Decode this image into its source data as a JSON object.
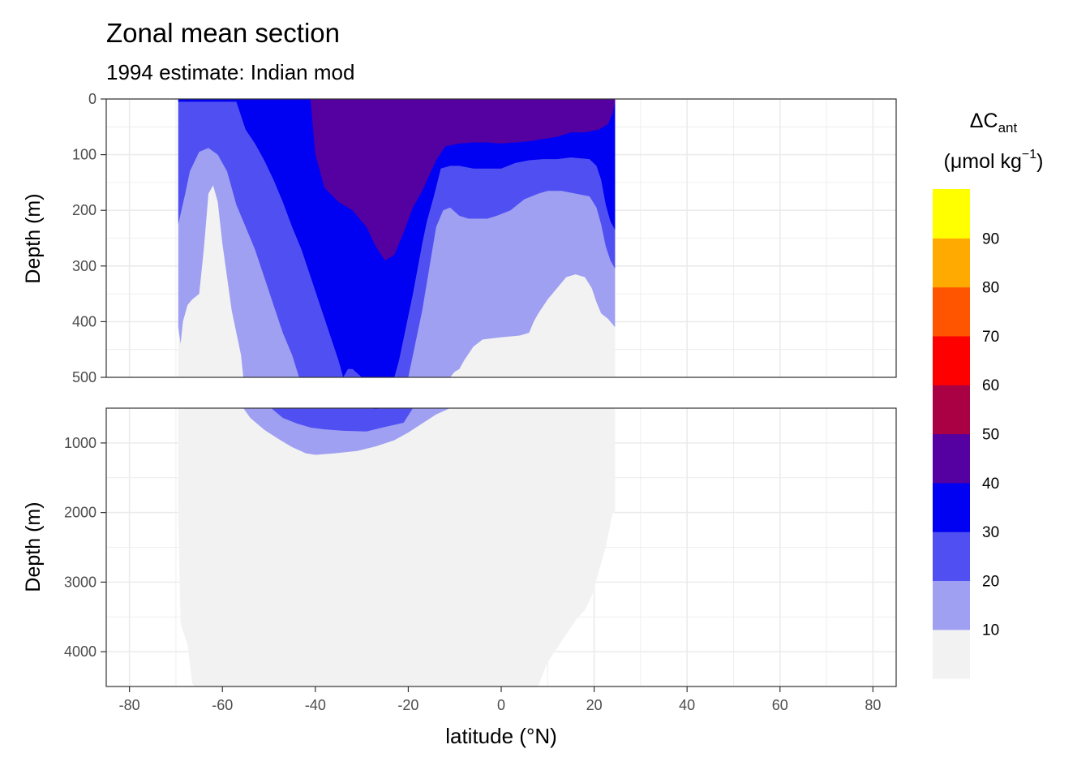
{
  "title": "Zonal mean section",
  "subtitle": "1994 estimate: Indian mod",
  "colors": {
    "bins": [
      "#F2F2F2",
      "#A0A0F2",
      "#5050F2",
      "#0000F2",
      "#5500A0",
      "#AA0044",
      "#FF0000",
      "#FF5500",
      "#FFAA00",
      "#FFFF00"
    ],
    "grid": "#EBEBEB",
    "panel_border": "#333333",
    "axis_text": "#4D4D4D"
  },
  "chart_data": {
    "type": "heatmap",
    "xlabel": "latitude (°N)",
    "ylabel": "Depth (m)",
    "xlim": [
      -85,
      85
    ],
    "x_ticks": [
      -80,
      -60,
      -40,
      -20,
      0,
      20,
      40,
      60,
      80
    ],
    "x_tick_labels": [
      "-80",
      "-60",
      "-40",
      "-20",
      "0",
      "20",
      "40",
      "60",
      "80"
    ],
    "data_extent_lat": [
      -69.5,
      24.5
    ],
    "panels": [
      {
        "name": "upper",
        "ylim": [
          500,
          0
        ],
        "y_ticks": [
          0,
          100,
          200,
          300,
          400,
          500
        ],
        "y_tick_labels": [
          "0",
          "100",
          "200",
          "300",
          "400",
          "500"
        ],
        "bottom_profile": [
          [
            -69.5,
            500
          ],
          [
            -67,
            500
          ],
          [
            -65,
            500
          ],
          [
            -60,
            500
          ],
          [
            -55,
            500
          ],
          [
            24.5,
            500
          ]
        ]
      },
      {
        "name": "lower",
        "ylim": [
          4500,
          500
        ],
        "y_ticks": [
          1000,
          2000,
          3000,
          4000
        ],
        "y_tick_labels": [
          "1000",
          "2000",
          "3000",
          "4000"
        ],
        "bottom_profile": [
          [
            -69.5,
            2050
          ],
          [
            -69,
            3600
          ],
          [
            -67.5,
            3900
          ],
          [
            -66.5,
            4450
          ],
          [
            -66,
            4500
          ],
          [
            8,
            4500
          ],
          [
            8.5,
            4400
          ],
          [
            10,
            4150
          ],
          [
            12,
            3950
          ],
          [
            14,
            3750
          ],
          [
            16,
            3550
          ],
          [
            18,
            3400
          ],
          [
            19.5,
            3200
          ],
          [
            21,
            2850
          ],
          [
            22.5,
            2500
          ],
          [
            24,
            2000
          ],
          [
            24.5,
            2000
          ]
        ]
      }
    ],
    "contours": {
      "upper": [
        {
          "level": 10,
          "boundary": [
            [
              -69.5,
              410
            ],
            [
              -69,
              440
            ],
            [
              -68.5,
              400
            ],
            [
              -67.5,
              370
            ],
            [
              -66.5,
              360
            ],
            [
              -65,
              350
            ],
            [
              -64,
              270
            ],
            [
              -63,
              170
            ],
            [
              -62,
              155
            ],
            [
              -61,
              185
            ],
            [
              -60,
              260
            ],
            [
              -59,
              320
            ],
            [
              -58,
              380
            ],
            [
              -57,
              420
            ],
            [
              -56,
              460
            ],
            [
              -55.5,
              500
            ],
            [
              -34,
              500
            ],
            [
              -33.5,
              480
            ],
            [
              -33,
              470
            ],
            [
              -32,
              480
            ],
            [
              -31,
              490
            ],
            [
              -30,
              500
            ],
            [
              -11,
              500
            ],
            [
              -10,
              490
            ],
            [
              -9,
              485
            ],
            [
              -8,
              470
            ],
            [
              -6,
              445
            ],
            [
              -4,
              432
            ],
            [
              0,
              428
            ],
            [
              4,
              425
            ],
            [
              6,
              420
            ],
            [
              7,
              400
            ],
            [
              8,
              385
            ],
            [
              10,
              360
            ],
            [
              12,
              340
            ],
            [
              14,
              320
            ],
            [
              16,
              315
            ],
            [
              18,
              320
            ],
            [
              19.5,
              340
            ],
            [
              20.5,
              365
            ],
            [
              21.5,
              385
            ],
            [
              23,
              395
            ],
            [
              24.5,
              410
            ]
          ]
        },
        {
          "level": 20,
          "boundary": [
            [
              -69.5,
              225
            ],
            [
              -68,
              170
            ],
            [
              -67,
              130
            ],
            [
              -65,
              95
            ],
            [
              -63,
              88
            ],
            [
              -61,
              100
            ],
            [
              -59,
              130
            ],
            [
              -57,
              190
            ],
            [
              -55,
              230
            ],
            [
              -53,
              270
            ],
            [
              -51,
              320
            ],
            [
              -49,
              370
            ],
            [
              -47,
              420
            ],
            [
              -45,
              460
            ],
            [
              -43.5,
              500
            ],
            [
              -20,
              500
            ],
            [
              -19,
              460
            ],
            [
              -18,
              420
            ],
            [
              -17,
              380
            ],
            [
              -16,
              330
            ],
            [
              -15,
              280
            ],
            [
              -14,
              230
            ],
            [
              -12.5,
              200
            ],
            [
              -11,
              195
            ],
            [
              -9,
              210
            ],
            [
              -7,
              215
            ],
            [
              -5,
              215
            ],
            [
              -3,
              215
            ],
            [
              -1,
              210
            ],
            [
              2,
              200
            ],
            [
              5,
              180
            ],
            [
              8,
              170
            ],
            [
              10,
              165
            ],
            [
              13,
              165
            ],
            [
              16,
              170
            ],
            [
              19,
              175
            ],
            [
              20.5,
              195
            ],
            [
              21.5,
              225
            ],
            [
              22.5,
              265
            ],
            [
              23.5,
              290
            ],
            [
              24.5,
              305
            ]
          ]
        },
        {
          "level": 30,
          "boundary": [
            [
              -69.5,
              5
            ],
            [
              -60,
              5
            ],
            [
              -57,
              5
            ],
            [
              -56,
              30
            ],
            [
              -55,
              55
            ],
            [
              -53,
              80
            ],
            [
              -51,
              110
            ],
            [
              -49,
              145
            ],
            [
              -47,
              185
            ],
            [
              -45,
              230
            ],
            [
              -43,
              270
            ],
            [
              -41,
              320
            ],
            [
              -39,
              370
            ],
            [
              -37,
              420
            ],
            [
              -35,
              470
            ],
            [
              -34,
              500
            ],
            [
              -33,
              485
            ],
            [
              -32,
              485
            ],
            [
              -30,
              500
            ],
            [
              -23,
              500
            ],
            [
              -22,
              470
            ],
            [
              -21,
              430
            ],
            [
              -20,
              390
            ],
            [
              -19,
              350
            ],
            [
              -18,
              305
            ],
            [
              -17,
              260
            ],
            [
              -16,
              220
            ],
            [
              -14.5,
              175
            ],
            [
              -13,
              125
            ],
            [
              -11,
              120
            ],
            [
              -9,
              120
            ],
            [
              -6,
              125
            ],
            [
              -3,
              125
            ],
            [
              0,
              125
            ],
            [
              3,
              115
            ],
            [
              6,
              110
            ],
            [
              9,
              108
            ],
            [
              12,
              108
            ],
            [
              15,
              105
            ],
            [
              19,
              108
            ],
            [
              20.5,
              120
            ],
            [
              21.5,
              145
            ],
            [
              22.5,
              190
            ],
            [
              23.5,
              220
            ],
            [
              24.5,
              235
            ]
          ]
        },
        {
          "level": 40,
          "boundary": [
            [
              -41,
              5
            ],
            [
              -40,
              100
            ],
            [
              -38,
              160
            ],
            [
              -35,
              185
            ],
            [
              -32,
              200
            ],
            [
              -29,
              230
            ],
            [
              -27,
              265
            ],
            [
              -25,
              290
            ],
            [
              -23,
              280
            ],
            [
              -21,
              240
            ],
            [
              -19,
              195
            ],
            [
              -17,
              165
            ],
            [
              -14,
              110
            ],
            [
              -12,
              85
            ],
            [
              -9,
              80
            ],
            [
              -6,
              78
            ],
            [
              -3,
              78
            ],
            [
              0,
              80
            ],
            [
              3,
              78
            ],
            [
              6,
              76
            ],
            [
              9,
              72
            ],
            [
              12,
              68
            ],
            [
              15,
              60
            ],
            [
              18,
              60
            ],
            [
              21,
              55
            ],
            [
              23,
              45
            ],
            [
              24,
              25
            ],
            [
              24.5,
              5
            ]
          ]
        }
      ],
      "lower": [
        {
          "level": 10,
          "boundary": [
            [
              -55.5,
              500
            ],
            [
              -54,
              640
            ],
            [
              -51,
              810
            ],
            [
              -48,
              940
            ],
            [
              -45,
              1060
            ],
            [
              -42,
              1150
            ],
            [
              -40,
              1170
            ],
            [
              -36,
              1150
            ],
            [
              -31,
              1115
            ],
            [
              -27,
              1050
            ],
            [
              -23,
              960
            ],
            [
              -20,
              850
            ],
            [
              -17,
              720
            ],
            [
              -14,
              590
            ],
            [
              -11,
              500
            ]
          ]
        },
        {
          "level": 20,
          "boundary": [
            [
              -49.5,
              500
            ],
            [
              -47,
              640
            ],
            [
              -44,
              720
            ],
            [
              -41,
              780
            ],
            [
              -38,
              805
            ],
            [
              -34,
              825
            ],
            [
              -29,
              835
            ],
            [
              -25,
              770
            ],
            [
              -21,
              710
            ],
            [
              -19,
              500
            ]
          ]
        },
        {
          "level": 30,
          "boundary": [
            [
              -29,
              500
            ],
            [
              -27,
              510
            ],
            [
              -25,
              500
            ]
          ]
        }
      ]
    },
    "legend": {
      "title_main": "ΔC",
      "title_sub": "ant",
      "title_units_pre": "(μmol kg",
      "title_units_sup": "−1",
      "title_units_post": ")",
      "breaks": [
        10,
        20,
        30,
        40,
        50,
        60,
        70,
        80,
        90
      ],
      "break_labels": [
        "10",
        "20",
        "30",
        "40",
        "50",
        "60",
        "70",
        "80",
        "90"
      ]
    }
  }
}
